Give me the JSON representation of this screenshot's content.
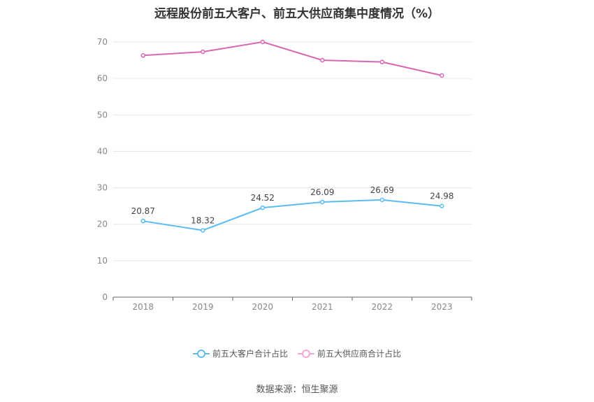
{
  "chart_data": {
    "type": "line",
    "title": "远程股份前五大客户、前五大供应商集中度情况（%）",
    "categories": [
      "2018",
      "2019",
      "2020",
      "2021",
      "2022",
      "2023"
    ],
    "ylim": [
      0,
      70
    ],
    "yticks": [
      0,
      10,
      20,
      30,
      40,
      50,
      60,
      70
    ],
    "grid": true,
    "legend_position": "bottom",
    "series": [
      {
        "name": "前五大客户合计占比",
        "values": [
          20.87,
          18.32,
          24.52,
          26.09,
          26.69,
          24.98
        ],
        "labels": [
          "20.87",
          "18.32",
          "24.52",
          "26.09",
          "26.69",
          "24.98"
        ],
        "color": "#5bbcef",
        "show_labels": true
      },
      {
        "name": "前五大供应商合计占比",
        "values": [
          66.3,
          67.3,
          70.0,
          65.0,
          64.5,
          60.8
        ],
        "color": "#d966b2",
        "show_labels": false
      }
    ]
  },
  "source": "数据来源：恒生聚源"
}
